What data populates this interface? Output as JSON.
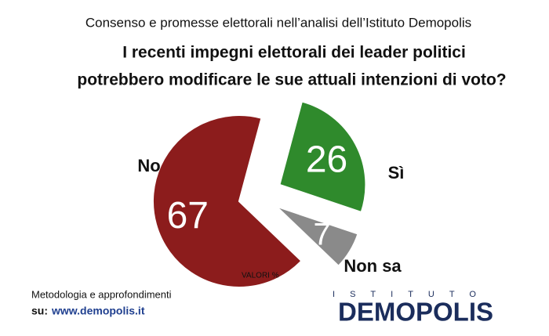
{
  "chart_data": {
    "type": "pie",
    "subtitle": "Consenso e promesse elettorali nell’analisi dell’Istituto Demopolis",
    "title": [
      "I recenti impegni elettorali dei leader politici",
      "potrebbero modificare le sue attuali intenzioni di voto?"
    ],
    "categories": [
      "Sì",
      "Non sa",
      "No"
    ],
    "values": [
      26,
      7,
      67
    ],
    "colors": [
      "#2f8a2c",
      "#8a8a8a",
      "#8c1c1c"
    ],
    "note": "VALORI %"
  },
  "footer": {
    "line1": "Metodologia e approfondimenti",
    "prefix": "su:",
    "url": "www.demopolis.it"
  },
  "logo": {
    "top": "ISTITUTO",
    "name": "DEMOPOLIS"
  }
}
